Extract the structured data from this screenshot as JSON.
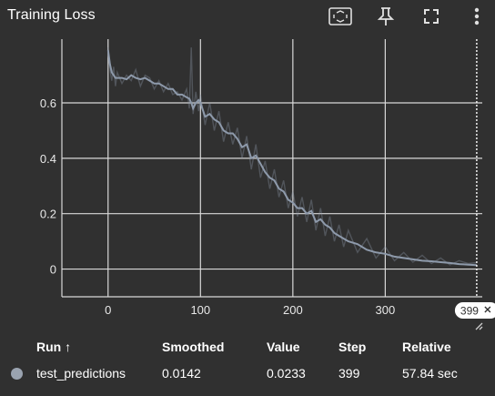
{
  "card": {
    "title": "Training Loss",
    "buttons": [
      "fit-domain-icon",
      "pin-icon",
      "fullscreen-icon",
      "more-vert-icon"
    ]
  },
  "chart_data": {
    "type": "line",
    "series": [
      {
        "name": "test_predictions",
        "color": "#8e9aab",
        "x": [
          0,
          2,
          4,
          6,
          8,
          10,
          15,
          20,
          25,
          30,
          35,
          40,
          45,
          50,
          55,
          60,
          65,
          70,
          75,
          80,
          85,
          88,
          90,
          92,
          95,
          98,
          100,
          105,
          110,
          115,
          120,
          125,
          130,
          135,
          140,
          145,
          150,
          155,
          160,
          165,
          170,
          175,
          180,
          185,
          190,
          195,
          200,
          205,
          210,
          215,
          220,
          225,
          230,
          235,
          240,
          245,
          250,
          255,
          260,
          270,
          280,
          290,
          300,
          310,
          320,
          330,
          340,
          350,
          360,
          370,
          380,
          390,
          399
        ],
        "smoothed": [
          0.79,
          0.74,
          0.71,
          0.7,
          0.69,
          0.69,
          0.69,
          0.685,
          0.7,
          0.69,
          0.685,
          0.69,
          0.68,
          0.67,
          0.67,
          0.66,
          0.65,
          0.65,
          0.63,
          0.63,
          0.62,
          0.615,
          0.6,
          0.58,
          0.6,
          0.61,
          0.6,
          0.55,
          0.56,
          0.54,
          0.53,
          0.5,
          0.49,
          0.49,
          0.47,
          0.44,
          0.45,
          0.4,
          0.41,
          0.38,
          0.35,
          0.33,
          0.32,
          0.29,
          0.28,
          0.25,
          0.24,
          0.22,
          0.22,
          0.2,
          0.21,
          0.17,
          0.18,
          0.16,
          0.15,
          0.13,
          0.12,
          0.11,
          0.1,
          0.09,
          0.07,
          0.06,
          0.055,
          0.045,
          0.04,
          0.035,
          0.03,
          0.028,
          0.025,
          0.022,
          0.018,
          0.016,
          0.0142
        ],
        "raw": [
          0.8,
          0.72,
          0.68,
          0.73,
          0.66,
          0.71,
          0.67,
          0.7,
          0.68,
          0.72,
          0.66,
          0.7,
          0.69,
          0.65,
          0.68,
          0.64,
          0.67,
          0.63,
          0.64,
          0.61,
          0.65,
          0.58,
          0.8,
          0.56,
          0.64,
          0.57,
          0.63,
          0.52,
          0.6,
          0.5,
          0.57,
          0.46,
          0.53,
          0.45,
          0.51,
          0.4,
          0.48,
          0.36,
          0.45,
          0.33,
          0.39,
          0.29,
          0.36,
          0.26,
          0.32,
          0.22,
          0.28,
          0.19,
          0.26,
          0.17,
          0.25,
          0.14,
          0.22,
          0.12,
          0.19,
          0.1,
          0.16,
          0.08,
          0.14,
          0.06,
          0.11,
          0.04,
          0.08,
          0.03,
          0.06,
          0.025,
          0.05,
          0.02,
          0.04,
          0.015,
          0.03,
          0.02,
          0.0233
        ]
      }
    ],
    "y_ticks": [
      "0",
      "0.2",
      "0.4",
      "0.6"
    ],
    "y_ticks_values": [
      0,
      0.2,
      0.4,
      0.6
    ],
    "x_ticks": [
      "0",
      "100",
      "200",
      "300"
    ],
    "x_tick_values": [
      0,
      100,
      200,
      300
    ],
    "xlim": [
      -50,
      405
    ],
    "ylim": [
      -0.1,
      0.83
    ],
    "grid": true,
    "cursor": {
      "step": 399,
      "label": "399"
    }
  },
  "table": {
    "headers": {
      "run": "Run ↑",
      "smoothed": "Smoothed",
      "value": "Value",
      "step": "Step",
      "relative": "Relative"
    },
    "rows": [
      {
        "run": "test_predictions",
        "smoothed": "0.0142",
        "value": "0.0233",
        "step": "399",
        "relative": "57.84 sec",
        "color": "#9aa3b0"
      }
    ]
  }
}
